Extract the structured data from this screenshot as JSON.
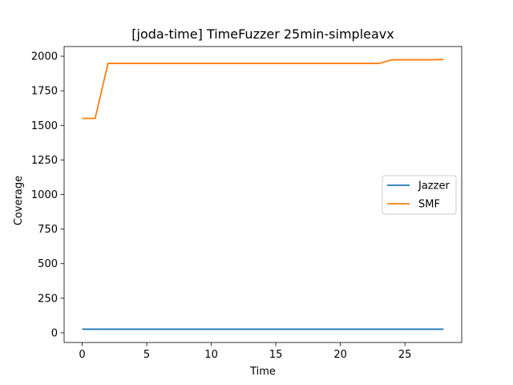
{
  "chart_data": {
    "type": "line",
    "title": "[joda-time] TimeFuzzer 25min-simpleavx",
    "xlabel": "Time",
    "ylabel": "Coverage",
    "xlim": [
      -1.4,
      29.4
    ],
    "ylim": [
      -70,
      2070
    ],
    "xticks": [
      0,
      5,
      10,
      15,
      20,
      25
    ],
    "yticks": [
      0,
      250,
      500,
      750,
      1000,
      1250,
      1500,
      1750,
      2000
    ],
    "grid": false,
    "legend_position": "center-right",
    "series": [
      {
        "name": "Jazzer",
        "color": "#1f77b4",
        "x": [
          0,
          1,
          2,
          3,
          4,
          5,
          6,
          7,
          8,
          9,
          10,
          11,
          12,
          13,
          14,
          15,
          16,
          17,
          18,
          19,
          20,
          21,
          22,
          23,
          24,
          25,
          26,
          27,
          28
        ],
        "y": [
          26,
          26,
          26,
          26,
          26,
          26,
          26,
          26,
          26,
          26,
          26,
          26,
          26,
          26,
          26,
          26,
          26,
          26,
          26,
          26,
          26,
          26,
          26,
          26,
          26,
          26,
          26,
          26,
          26
        ]
      },
      {
        "name": "SMF",
        "color": "#ff7f0e",
        "x": [
          0,
          1,
          2,
          3,
          4,
          5,
          6,
          7,
          8,
          9,
          10,
          11,
          12,
          13,
          14,
          15,
          16,
          17,
          18,
          19,
          20,
          21,
          22,
          23,
          24,
          25,
          26,
          27,
          28
        ],
        "y": [
          1550,
          1550,
          1948,
          1948,
          1948,
          1948,
          1948,
          1948,
          1948,
          1948,
          1948,
          1948,
          1948,
          1948,
          1948,
          1948,
          1948,
          1948,
          1948,
          1948,
          1948,
          1948,
          1948,
          1948,
          1974,
          1974,
          1974,
          1974,
          1976
        ]
      }
    ]
  }
}
